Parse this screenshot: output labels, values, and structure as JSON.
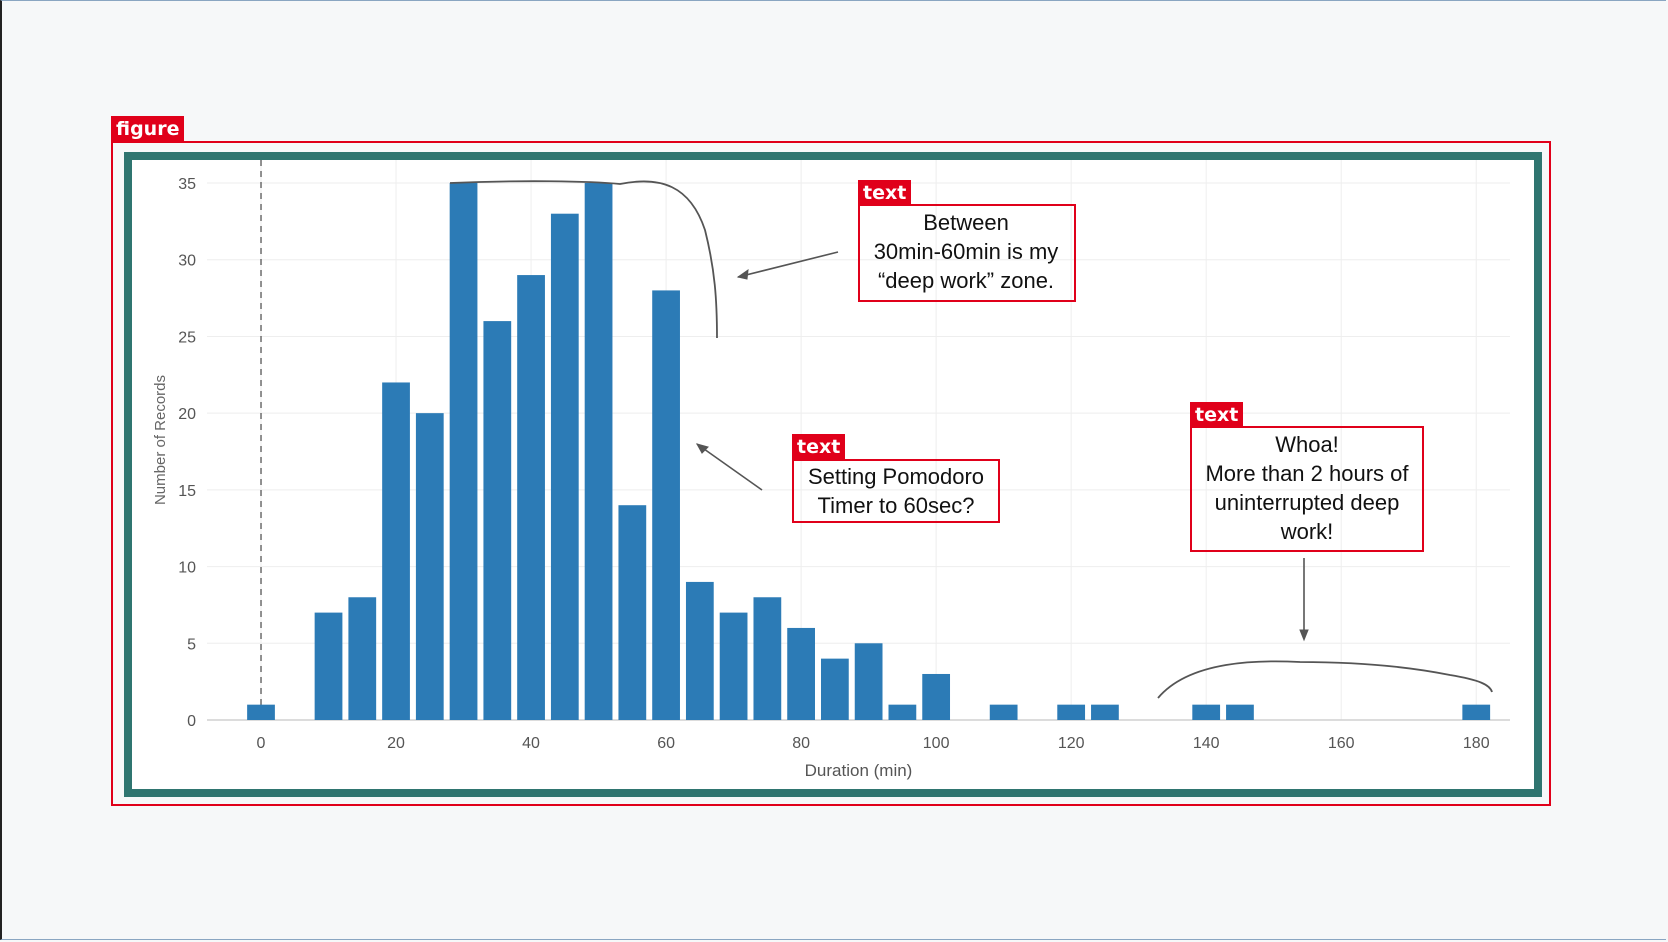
{
  "detections": [
    {
      "label": "figure"
    },
    {
      "label": "text"
    },
    {
      "label": "text"
    },
    {
      "label": "text"
    }
  ],
  "annotations": {
    "deep_work": "Between\n30min-60min is my\n“deep work” zone.",
    "pomodoro": "Setting Pomodoro\nTimer to 60sec?",
    "whoa": "Whoa!\nMore than 2 hours of\nuninterrupted deep\nwork!"
  },
  "colors": {
    "bar": "#2c7bb6",
    "frame": "#2f7570",
    "detection": "#e0001a"
  },
  "chart_data": {
    "type": "bar",
    "xlabel": "Duration (min)",
    "ylabel": "Number of Records",
    "xlim": [
      -8,
      185
    ],
    "ylim": [
      0,
      36.5
    ],
    "x_ticks": [
      0,
      20,
      40,
      60,
      80,
      100,
      120,
      140,
      160,
      180
    ],
    "x_tick_labels": [
      "0",
      "20",
      "40",
      "60",
      "80",
      "100",
      "120",
      "140",
      "160",
      "180"
    ],
    "y_ticks": [
      0,
      5,
      10,
      15,
      20,
      25,
      30,
      35
    ],
    "bars": [
      {
        "x": 0,
        "value": 1
      },
      {
        "x": 10,
        "value": 7
      },
      {
        "x": 15,
        "value": 8
      },
      {
        "x": 20,
        "value": 22
      },
      {
        "x": 25,
        "value": 20
      },
      {
        "x": 30,
        "value": 35
      },
      {
        "x": 35,
        "value": 26
      },
      {
        "x": 40,
        "value": 29
      },
      {
        "x": 45,
        "value": 33
      },
      {
        "x": 50,
        "value": 35
      },
      {
        "x": 55,
        "value": 14
      },
      {
        "x": 60,
        "value": 28
      },
      {
        "x": 65,
        "value": 9
      },
      {
        "x": 70,
        "value": 7
      },
      {
        "x": 75,
        "value": 8
      },
      {
        "x": 80,
        "value": 6
      },
      {
        "x": 85,
        "value": 4
      },
      {
        "x": 90,
        "value": 5
      },
      {
        "x": 95,
        "value": 1
      },
      {
        "x": 100,
        "value": 3
      },
      {
        "x": 110,
        "value": 1
      },
      {
        "x": 120,
        "value": 1
      },
      {
        "x": 125,
        "value": 1
      },
      {
        "x": 140,
        "value": 1
      },
      {
        "x": 145,
        "value": 1
      },
      {
        "x": 180,
        "value": 1
      }
    ],
    "reference_line_x": 0,
    "grid": true
  }
}
